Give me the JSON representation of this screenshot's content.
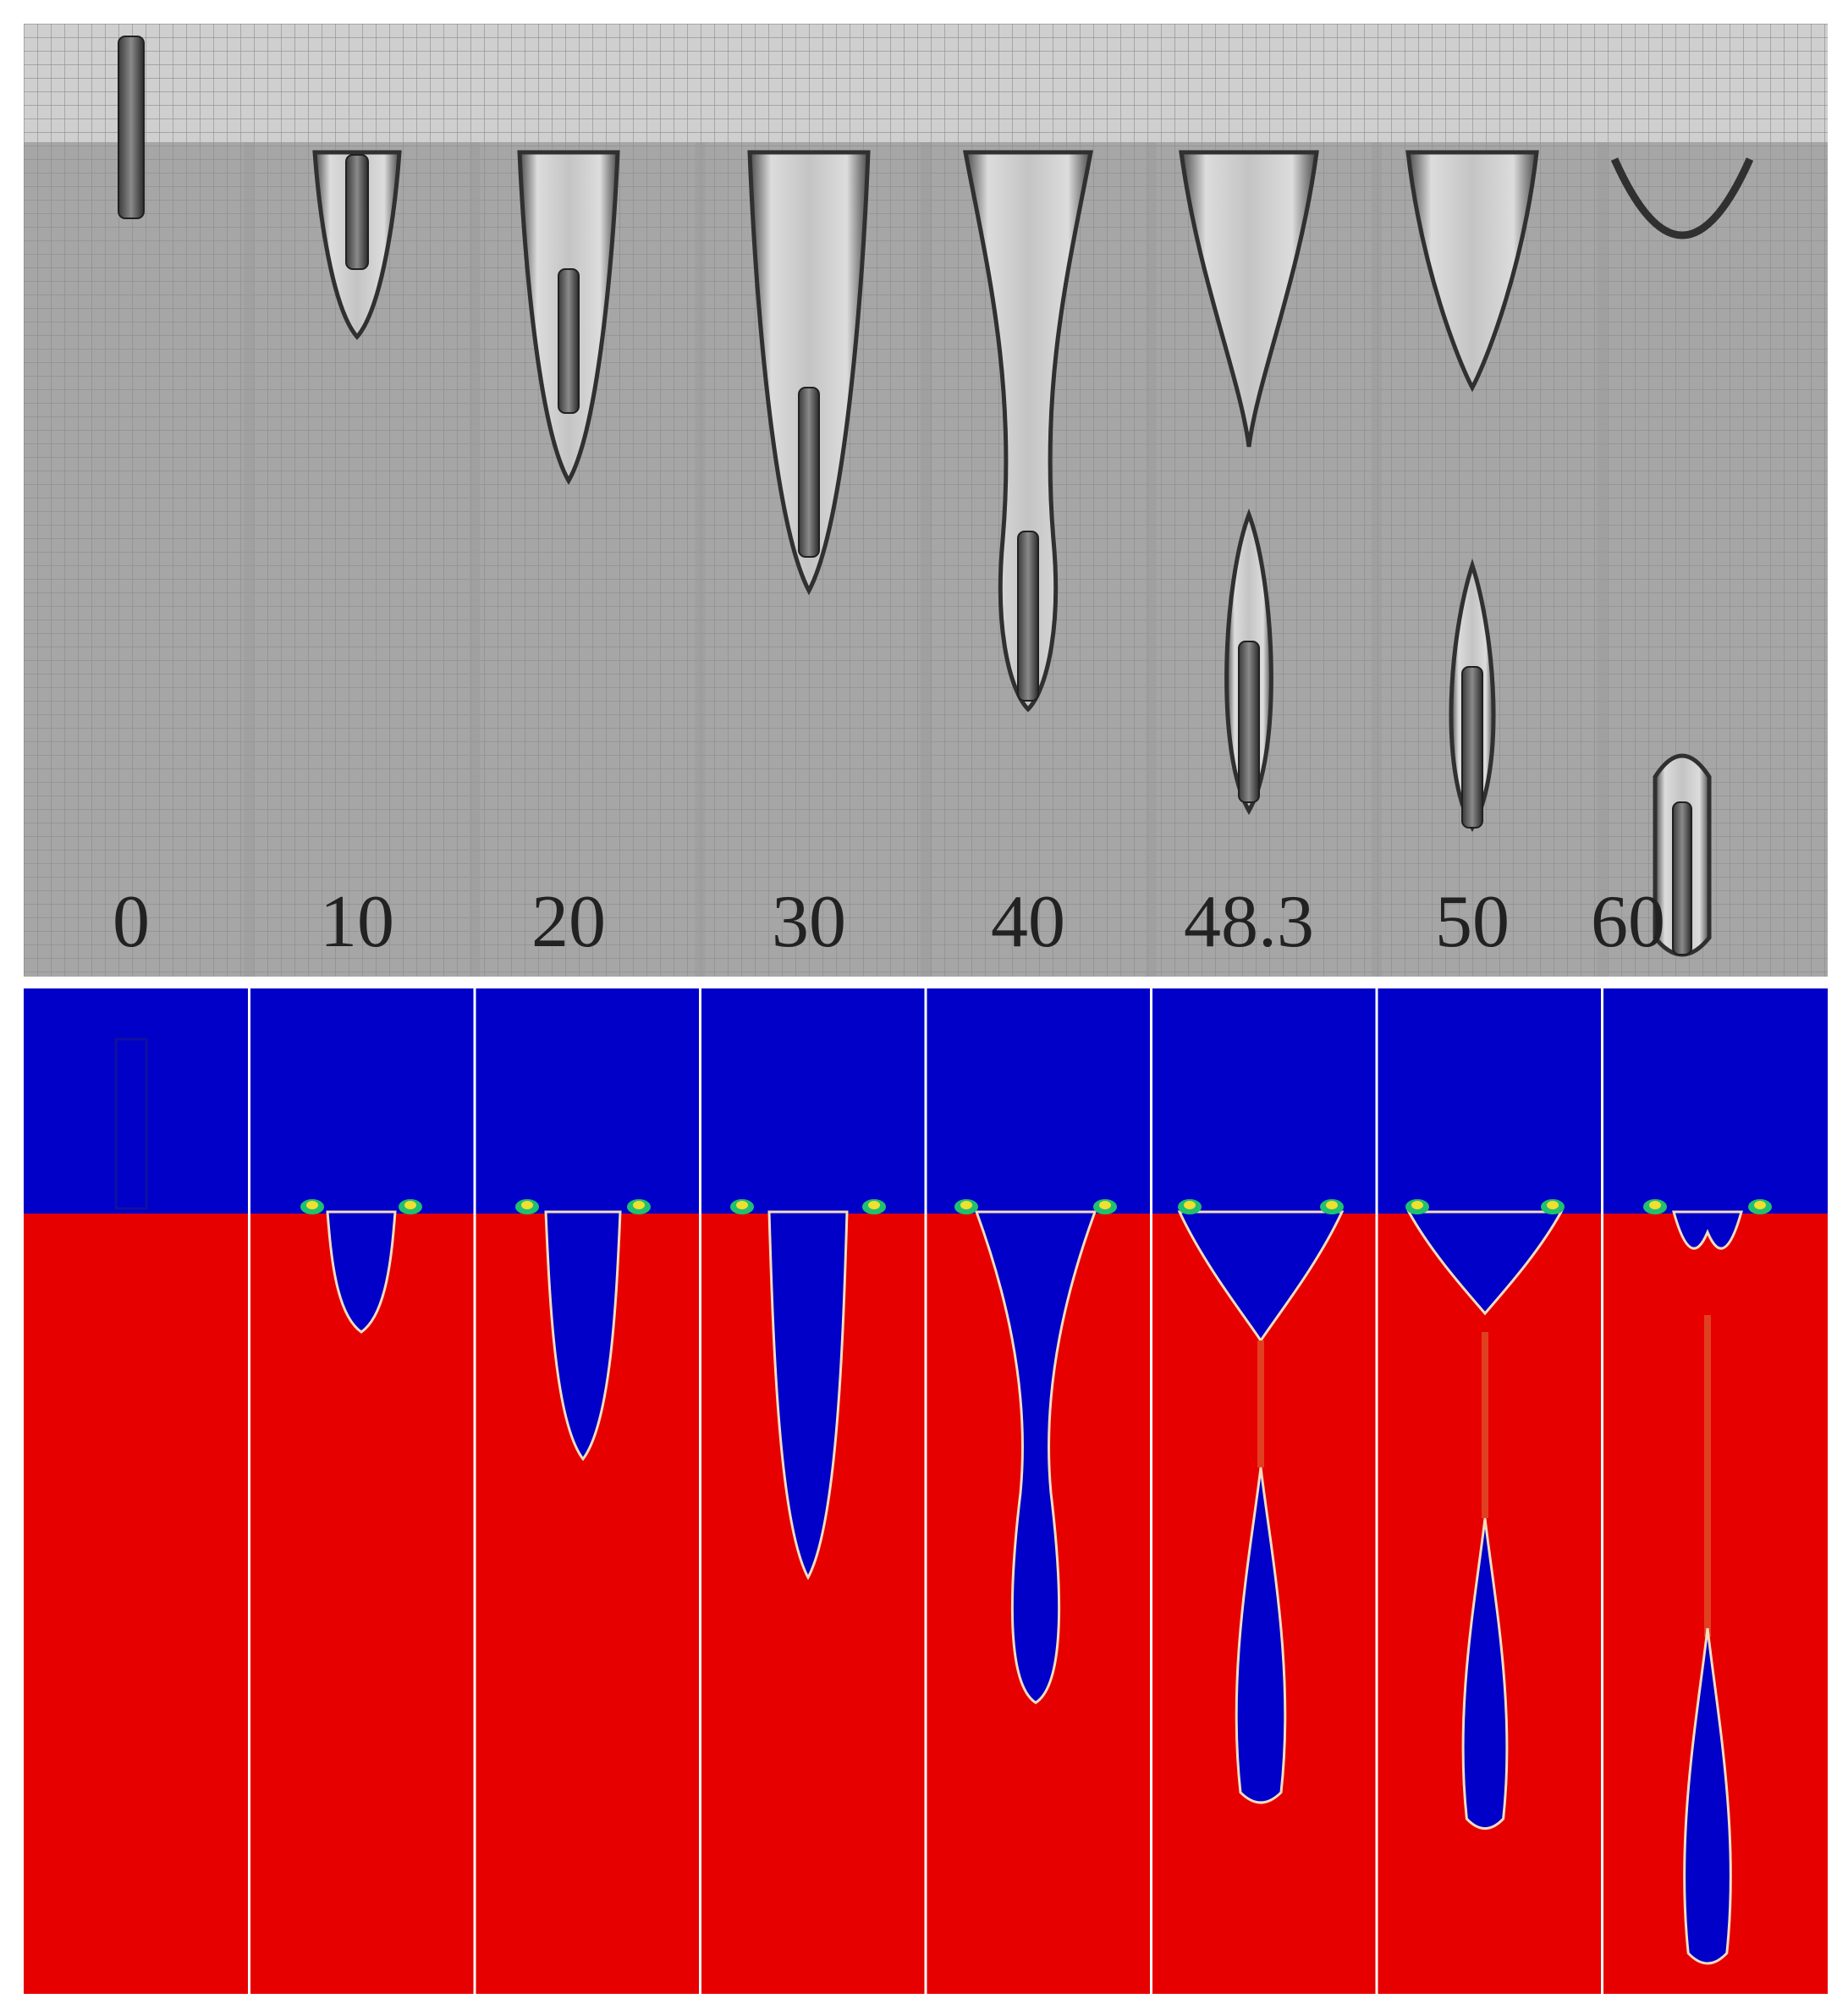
{
  "figure": {
    "top_panel": "experimental photographs of cavity formation behind a projectile entering water",
    "bottom_panel": "numerical simulation of volume fraction",
    "time_labels": [
      "0",
      "10",
      "20",
      "30",
      "40",
      "48.3",
      "50",
      "60"
    ]
  },
  "colors": {
    "air": "#0000c8",
    "water": "#e60000",
    "interface": "#f2dcc0",
    "divider": "#ffffff",
    "photo_background": "#a4a4a4",
    "photo_cavity": "#d8d8d8",
    "photo_edge": "#303030"
  }
}
